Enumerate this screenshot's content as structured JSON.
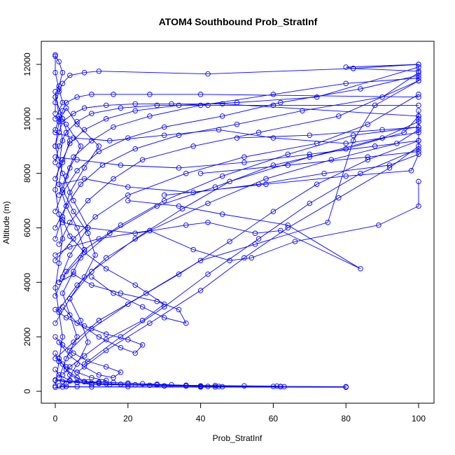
{
  "chart_data": {
    "type": "line",
    "title": "ATOM4 Southbound Prob_StratInf",
    "xlabel": "Prob_StratInf",
    "ylabel": "Altitude (m)",
    "xlim": [
      0,
      100
    ],
    "ylim": [
      0,
      12000
    ],
    "x_ticks": [
      0,
      20,
      40,
      60,
      80,
      100
    ],
    "y_ticks": [
      0,
      2000,
      4000,
      6000,
      8000,
      10000,
      12000
    ],
    "grid": false,
    "legend": "none",
    "marker": "open-circle",
    "color": "#0000ff",
    "series": [
      {
        "x": [
          0,
          2,
          80,
          80,
          60,
          10,
          4,
          1,
          0
        ],
        "y": [
          150,
          160,
          150,
          170,
          180,
          250,
          400,
          600,
          800
        ]
      },
      {
        "x": [
          1,
          3,
          6,
          10,
          20,
          40,
          62,
          45,
          30,
          15,
          8,
          4,
          2
        ],
        "y": [
          200,
          180,
          170,
          160,
          170,
          160,
          170,
          180,
          200,
          250,
          350,
          600,
          1000
        ]
      },
      {
        "x": [
          0,
          5,
          12,
          25,
          40,
          55,
          75,
          82,
          88,
          100,
          100,
          80,
          82,
          100
        ],
        "y": [
          1200,
          1800,
          2600,
          3600,
          4800,
          5400,
          6200,
          9200,
          10500,
          11400,
          12000,
          11900,
          11850,
          11750
        ]
      },
      {
        "x": [
          0,
          4,
          10,
          22,
          35,
          48,
          70,
          90,
          100,
          100
        ],
        "y": [
          2500,
          3400,
          4400,
          5600,
          6700,
          7700,
          8600,
          9300,
          9900,
          10300
        ]
      },
      {
        "x": [
          1,
          6,
          14,
          26,
          42,
          58,
          76,
          94,
          100,
          100
        ],
        "y": [
          3000,
          3900,
          4900,
          5900,
          6900,
          7800,
          8500,
          9100,
          9600,
          10000
        ]
      },
      {
        "x": [
          0,
          3,
          8,
          18,
          30,
          46,
          64,
          82,
          100
        ],
        "y": [
          3500,
          4400,
          5200,
          6100,
          7000,
          7900,
          8700,
          9400,
          9700
        ]
      },
      {
        "x": [
          2,
          7,
          15,
          28,
          44,
          60,
          80,
          96,
          100
        ],
        "y": [
          4200,
          4900,
          5800,
          6800,
          7500,
          8300,
          8900,
          9500,
          10100
        ]
      },
      {
        "x": [
          0,
          5,
          11,
          20,
          36,
          52,
          72,
          86,
          100
        ],
        "y": [
          4800,
          5600,
          6400,
          7200,
          8000,
          8600,
          9100,
          9800,
          10900
        ]
      },
      {
        "x": [
          1,
          4,
          9,
          16,
          24,
          38,
          56,
          78,
          100
        ],
        "y": [
          5400,
          6200,
          7000,
          7800,
          8500,
          9000,
          9500,
          10100,
          11400
        ]
      },
      {
        "x": [
          0,
          3,
          7,
          13,
          22,
          34,
          50,
          68,
          90,
          100
        ],
        "y": [
          6000,
          6800,
          7600,
          8300,
          8900,
          9400,
          9800,
          10300,
          10800,
          11700
        ]
      },
      {
        "x": [
          0,
          2,
          6,
          12,
          20,
          30,
          46,
          62,
          84,
          100
        ],
        "y": [
          6600,
          7300,
          8100,
          8800,
          9300,
          9700,
          10100,
          10600,
          11100,
          11600
        ]
      },
      {
        "x": [
          1,
          3,
          5,
          10,
          16,
          26,
          40,
          60,
          80,
          100
        ],
        "y": [
          7200,
          7900,
          8600,
          9200,
          9700,
          10100,
          10500,
          10900,
          11300,
          11500
        ]
      },
      {
        "x": [
          0,
          2,
          4,
          8,
          14,
          22,
          34,
          50,
          72,
          100
        ],
        "y": [
          7800,
          8500,
          9100,
          9600,
          10000,
          10300,
          10500,
          10600,
          10800,
          11900
        ]
      },
      {
        "x": [
          0,
          1,
          3,
          6,
          10,
          18,
          28,
          42,
          60,
          100
        ],
        "y": [
          8400,
          9000,
          9500,
          9900,
          10200,
          10400,
          10500,
          10500,
          10500,
          10500
        ]
      },
      {
        "x": [
          0,
          1,
          2,
          5,
          8,
          14,
          22,
          32,
          46,
          100
        ],
        "y": [
          9000,
          9500,
          9900,
          10200,
          10400,
          10500,
          10550,
          10550,
          10550,
          10100
        ]
      },
      {
        "x": [
          0,
          1,
          2,
          3,
          6,
          10,
          16,
          26,
          40,
          100
        ],
        "y": [
          9600,
          10000,
          10300,
          10600,
          10800,
          10900,
          10900,
          10900,
          10900,
          10800
        ]
      },
      {
        "x": [
          0,
          0,
          1,
          2,
          4,
          8,
          12,
          42,
          82,
          100
        ],
        "y": [
          10200,
          10600,
          11000,
          11300,
          11600,
          11700,
          11750,
          11650,
          11850,
          12000
        ]
      },
      {
        "x": [
          0,
          1,
          2,
          1,
          0,
          0,
          0,
          1,
          2,
          0
        ],
        "y": [
          10800,
          11200,
          11700,
          12100,
          12300,
          12350,
          11700,
          11100,
          10600,
          10000
        ]
      },
      {
        "x": [
          0,
          5,
          15,
          30,
          45,
          60,
          80,
          100,
          100,
          90,
          70,
          50
        ],
        "y": [
          9500,
          9300,
          9200,
          9400,
          9600,
          9300,
          9100,
          9500,
          9700,
          9600,
          9400,
          9300
        ]
      },
      {
        "x": [
          0,
          6,
          18,
          34,
          52,
          70,
          88,
          100,
          100,
          86,
          64,
          40
        ],
        "y": [
          8600,
          8500,
          8300,
          8200,
          8400,
          8700,
          9000,
          9200,
          8800,
          8600,
          8300,
          8000
        ]
      },
      {
        "x": [
          1,
          8,
          20,
          38,
          56,
          74,
          92,
          100,
          98,
          80,
          58,
          30
        ],
        "y": [
          7600,
          7800,
          7500,
          7300,
          7600,
          8000,
          8300,
          8700,
          8100,
          7900,
          7600,
          7200
        ]
      },
      {
        "x": [
          2,
          9,
          22,
          36,
          42,
          55,
          62,
          84,
          64,
          46,
          34,
          20
        ],
        "y": [
          6200,
          6000,
          5800,
          6100,
          6200,
          5800,
          5900,
          4500,
          6100,
          6500,
          6800,
          7000
        ]
      },
      {
        "x": [
          0,
          4,
          12,
          26,
          38,
          48,
          54,
          66,
          89,
          100,
          100
        ],
        "y": [
          5000,
          5300,
          5600,
          5900,
          5200,
          4800,
          4900,
          5500,
          6100,
          6800,
          7700
        ]
      },
      {
        "x": [
          1,
          5,
          10,
          18,
          28,
          34,
          36,
          30,
          24,
          16,
          10
        ],
        "y": [
          4000,
          4300,
          3900,
          3600,
          3300,
          3000,
          2500,
          2700,
          3100,
          3600,
          4200
        ]
      },
      {
        "x": [
          0,
          3,
          8,
          14,
          20,
          24,
          22,
          18,
          12,
          6,
          2
        ],
        "y": [
          3000,
          2700,
          2400,
          2100,
          1900,
          1700,
          1400,
          1600,
          2000,
          2500,
          3100
        ]
      },
      {
        "x": [
          0,
          2,
          5,
          9,
          14,
          18,
          16,
          12,
          8,
          4,
          1
        ],
        "y": [
          2000,
          1700,
          1400,
          1100,
          900,
          700,
          500,
          600,
          900,
          1300,
          1800
        ]
      },
      {
        "x": [
          0,
          1,
          3,
          6,
          10,
          14,
          12,
          9,
          6,
          3,
          1
        ],
        "y": [
          1400,
          1100,
          900,
          700,
          500,
          400,
          300,
          350,
          500,
          800,
          1200
        ]
      },
      {
        "x": [
          0,
          2,
          4,
          8,
          12,
          6,
          3,
          1,
          0,
          2,
          5,
          9,
          4,
          1
        ],
        "y": [
          5600,
          6400,
          7300,
          8200,
          9000,
          9800,
          10400,
          9900,
          9000,
          8000,
          7000,
          6000,
          5000,
          4000
        ]
      },
      {
        "x": [
          1,
          3,
          6,
          4,
          2,
          5,
          8,
          6,
          3,
          1,
          2,
          4,
          2,
          0
        ],
        "y": [
          500,
          1200,
          2000,
          2800,
          3600,
          4400,
          5200,
          6000,
          6800,
          7600,
          8400,
          9200,
          10000,
          10800
        ]
      },
      {
        "x": [
          0,
          1,
          2,
          1,
          0,
          1,
          2,
          1,
          0,
          1,
          2,
          1,
          0
        ],
        "y": [
          200,
          1100,
          2000,
          2900,
          3800,
          4700,
          5600,
          6500,
          7400,
          8300,
          9200,
          10100,
          11000
        ]
      },
      {
        "x": [
          3,
          6,
          9,
          7,
          4,
          8,
          11,
          9,
          5,
          2,
          4,
          7,
          3
        ],
        "y": [
          300,
          1000,
          1800,
          2600,
          3400,
          4200,
          5000,
          5800,
          6600,
          7400,
          8200,
          9000,
          9800
        ]
      },
      {
        "x": [
          2,
          4,
          8,
          14,
          24,
          30,
          22,
          14,
          8,
          4,
          2
        ],
        "y": [
          600,
          900,
          1300,
          1900,
          2600,
          3200,
          3900,
          4500,
          5100,
          5700,
          6300
        ]
      },
      {
        "x": [
          4,
          10,
          20,
          34,
          48,
          60,
          72,
          86,
          100,
          100
        ],
        "y": [
          1500,
          2300,
          3200,
          4300,
          5500,
          6600,
          7600,
          8500,
          9200,
          9900
        ]
      },
      {
        "x": [
          6,
          14,
          26,
          40,
          52,
          64,
          78,
          92,
          100
        ],
        "y": [
          700,
          1500,
          2500,
          3700,
          4900,
          6000,
          7100,
          8200,
          9000
        ]
      },
      {
        "x": [
          8,
          18,
          30,
          42,
          56,
          70,
          84,
          100
        ],
        "y": [
          1000,
          2000,
          3100,
          4300,
          5600,
          6900,
          8000,
          8900
        ]
      },
      {
        "x": [
          0,
          4,
          8,
          12,
          16,
          20,
          24,
          28,
          32,
          36,
          40
        ],
        "y": [
          400,
          380,
          360,
          340,
          320,
          300,
          280,
          260,
          240,
          220,
          200
        ]
      },
      {
        "x": [
          42,
          44,
          46,
          40,
          36,
          30,
          26,
          22,
          18,
          14,
          10,
          6,
          2
        ],
        "y": [
          180,
          160,
          170,
          180,
          190,
          200,
          220,
          240,
          260,
          280,
          300,
          330,
          360
        ]
      },
      {
        "x": [
          63,
          62,
          61,
          52,
          44,
          36,
          28,
          20,
          12,
          6,
          2,
          0
        ],
        "y": [
          170,
          180,
          190,
          200,
          210,
          220,
          240,
          260,
          290,
          320,
          360,
          420
        ]
      }
    ]
  }
}
